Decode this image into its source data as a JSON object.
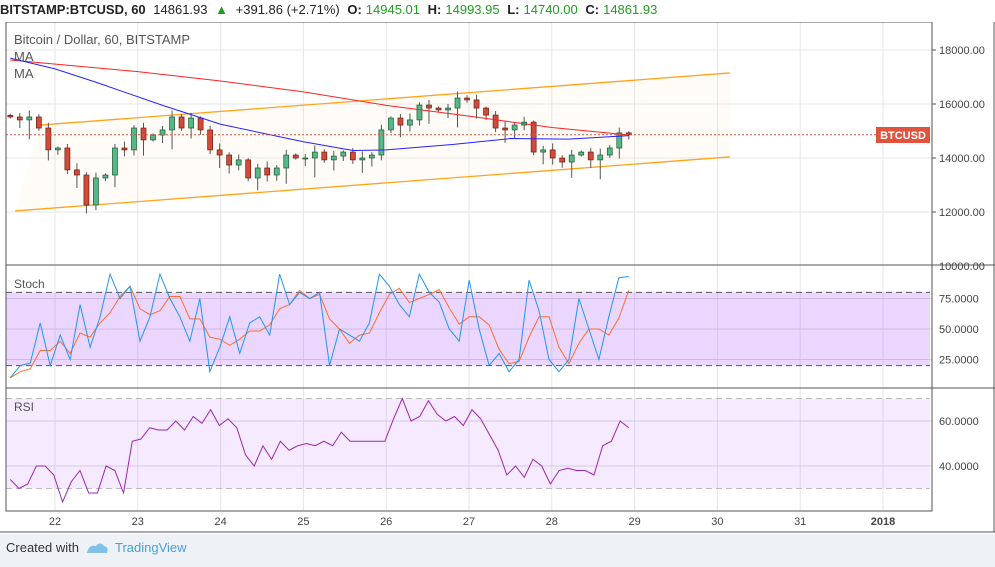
{
  "header": {
    "symbol": "BITSTAMP:BTCUSD, 60",
    "last": "14861.93",
    "change": "+391.86 (+2.71%)",
    "o_label": "O:",
    "o": "14945.01",
    "h_label": "H:",
    "h": "14993.95",
    "l_label": "L:",
    "l": "14740.00",
    "c_label": "C:",
    "c": "14861.93"
  },
  "legend": {
    "title": "Bitcoin / Dollar, 60, BITSTAMP",
    "ma1": "MA",
    "ma2": "MA",
    "stoch": "Stoch",
    "rsi": "RSI"
  },
  "price_label": "BTCUSD",
  "colors": {
    "up": "#53b987",
    "down": "#d24a3a",
    "ma_slow": "#ff2222",
    "ma_fast": "#2222ff",
    "channel": "#ffa31a",
    "stoch_k": "#2196f3",
    "stoch_d": "#ff6d2e",
    "rsi": "#9c27b0",
    "price_line": "#e0533d"
  },
  "chart_data": [
    {
      "type": "candlestick",
      "last_price": 14861.93,
      "ylim": [
        10000,
        19000
      ],
      "y_ticks": [
        "18000.00",
        "16000.00",
        "14000.00",
        "12000.00",
        "10000.00"
      ],
      "x_range_days": [
        21.46,
        28.93
      ],
      "closes": [
        15520,
        15410,
        15520,
        15110,
        14300,
        14370,
        13560,
        13370,
        12260,
        13260,
        13370,
        14370,
        14300,
        15110,
        14670,
        14850,
        15040,
        15520,
        15110,
        15480,
        15040,
        14300,
        14110,
        13740,
        13930,
        13260,
        13630,
        13370,
        13630,
        14110,
        14000,
        14000,
        14220,
        13930,
        14070,
        14220,
        13930,
        14000,
        14110,
        15040,
        15480,
        15220,
        15410,
        15960,
        15850,
        15780,
        15850,
        16220,
        16150,
        15850,
        15590,
        15110,
        15040,
        15220,
        15330,
        14220,
        14300,
        14000,
        13850,
        14110,
        14220,
        13930,
        14110,
        14370,
        14930,
        14862
      ],
      "ma_slow": [
        [
          21.46,
          17630
        ],
        [
          23.0,
          17200
        ],
        [
          24.0,
          16850
        ],
        [
          25.0,
          16450
        ],
        [
          26.0,
          15950
        ],
        [
          27.0,
          15550
        ],
        [
          28.0,
          15130
        ],
        [
          28.93,
          14850
        ]
      ],
      "ma_fast": [
        [
          21.46,
          17700
        ],
        [
          22.0,
          17300
        ],
        [
          22.5,
          16800
        ],
        [
          23.3,
          15950
        ],
        [
          24.0,
          15250
        ],
        [
          25.0,
          14600
        ],
        [
          25.6,
          14280
        ],
        [
          26.0,
          14300
        ],
        [
          26.8,
          14500
        ],
        [
          27.5,
          14720
        ],
        [
          28.2,
          14700
        ],
        [
          28.93,
          14830
        ]
      ],
      "channel_upper": [
        [
          21.82,
          15220
        ],
        [
          30.15,
          17150
        ]
      ],
      "channel_lower": [
        [
          21.52,
          12040
        ],
        [
          30.15,
          14040
        ]
      ]
    },
    {
      "type": "line",
      "name": "Stoch",
      "ylim": [
        0,
        100
      ],
      "y_ticks": [
        "100.0000",
        "75.0000",
        "50.0000",
        "25.0000"
      ],
      "bands": [
        20,
        80
      ],
      "x_range_days": [
        21.46,
        28.93
      ],
      "d_smoothing": 3,
      "k": [
        10,
        20,
        22,
        55,
        20,
        45,
        25,
        70,
        35,
        60,
        95,
        75,
        85,
        40,
        60,
        95,
        75,
        60,
        40,
        75,
        15,
        35,
        60,
        30,
        55,
        60,
        45,
        95,
        70,
        80,
        75,
        80,
        20,
        50,
        45,
        40,
        55,
        95,
        85,
        70,
        60,
        95,
        80,
        72,
        50,
        40,
        90,
        50,
        20,
        30,
        15,
        25,
        90,
        65,
        25,
        15,
        25,
        75,
        50,
        25,
        60,
        92,
        93
      ]
    },
    {
      "type": "line",
      "name": "RSI",
      "ylim": [
        20,
        75
      ],
      "y_ticks": [
        "60.0000",
        "40.0000"
      ],
      "bands": [
        30,
        70
      ],
      "x_range_days": [
        21.46,
        28.93
      ],
      "values": [
        34,
        30,
        32,
        40,
        40,
        36,
        24,
        33,
        38,
        28,
        28,
        40,
        38,
        28,
        51,
        52,
        57,
        56,
        56,
        60,
        56,
        62,
        59,
        65,
        58,
        61,
        57,
        45,
        40,
        49,
        43,
        51,
        47,
        49,
        50,
        49,
        51,
        49,
        55,
        51,
        51,
        51,
        51,
        51,
        61,
        70,
        60,
        62,
        69,
        63,
        60,
        62,
        58,
        65,
        61,
        54,
        47,
        36,
        40,
        35,
        43,
        40,
        32,
        38,
        39,
        38,
        38,
        36,
        49,
        51,
        60,
        57
      ]
    }
  ],
  "x_axis": {
    "labels": [
      {
        "day": 22,
        "text": "22"
      },
      {
        "day": 23,
        "text": "23"
      },
      {
        "day": 24,
        "text": "24"
      },
      {
        "day": 25,
        "text": "25"
      },
      {
        "day": 26,
        "text": "26"
      },
      {
        "day": 27,
        "text": "27"
      },
      {
        "day": 28,
        "text": "28"
      },
      {
        "day": 29,
        "text": "29"
      },
      {
        "day": 30,
        "text": "30"
      },
      {
        "day": 31,
        "text": "31"
      },
      {
        "day": 32,
        "text": "2018"
      }
    ]
  },
  "footer": {
    "created": "Created with",
    "brand": "TradingView"
  }
}
